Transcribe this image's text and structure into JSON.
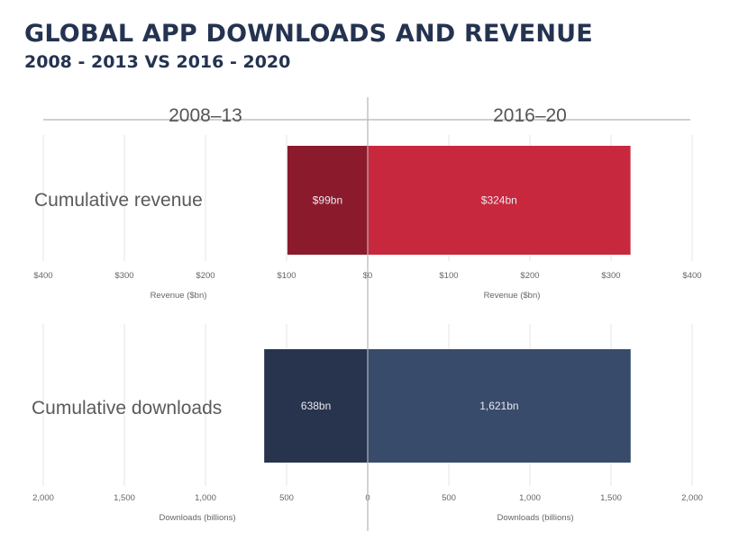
{
  "title": "GLOBAL APP DOWNLOADS AND REVENUE",
  "subtitle": "2008 - 2013 VS 2016 - 2020",
  "colors": {
    "revenue_left": "#8b1b2c",
    "revenue_right": "#c8283d",
    "downloads_left": "#28344d",
    "downloads_right": "#384b6b",
    "grid": "#e6e6e6",
    "axis": "#b5b5b5",
    "title": "#243350"
  },
  "chart_data": {
    "type": "bar",
    "orientation": "horizontal-diverging",
    "title": "GLOBAL APP DOWNLOADS AND REVENUE",
    "subtitle": "2008 - 2013 VS 2016 - 2020",
    "periods": [
      "2008–13",
      "2016–20"
    ],
    "panels": [
      {
        "name": "Cumulative revenue",
        "xlabel": "Revenue ($bn)",
        "xlim": [
          -400,
          400
        ],
        "ticks_left": [
          "$400",
          "$300",
          "$200",
          "$100",
          "$0"
        ],
        "ticks_right": [
          "$0",
          "$100",
          "$200",
          "$300",
          "$400"
        ],
        "tick_values": [
          400,
          300,
          200,
          100,
          0
        ],
        "series": [
          {
            "name": "2008–13",
            "value": 99,
            "label": "$99bn"
          },
          {
            "name": "2016–20",
            "value": 324,
            "label": "$324bn"
          }
        ]
      },
      {
        "name": "Cumulative downloads",
        "xlabel": "Downloads (billions)",
        "xlim": [
          -2000,
          2000
        ],
        "ticks_left": [
          "2,000",
          "1,500",
          "1,000",
          "500",
          "0"
        ],
        "ticks_right": [
          "0",
          "500",
          "1,000",
          "1,500",
          "2,000"
        ],
        "tick_values": [
          2000,
          1500,
          1000,
          500,
          0
        ],
        "series": [
          {
            "name": "2008–13",
            "value": 638,
            "label": "638bn"
          },
          {
            "name": "2016–20",
            "value": 1621,
            "label": "1,621bn"
          }
        ]
      }
    ],
    "grid": true,
    "legend": "none"
  }
}
